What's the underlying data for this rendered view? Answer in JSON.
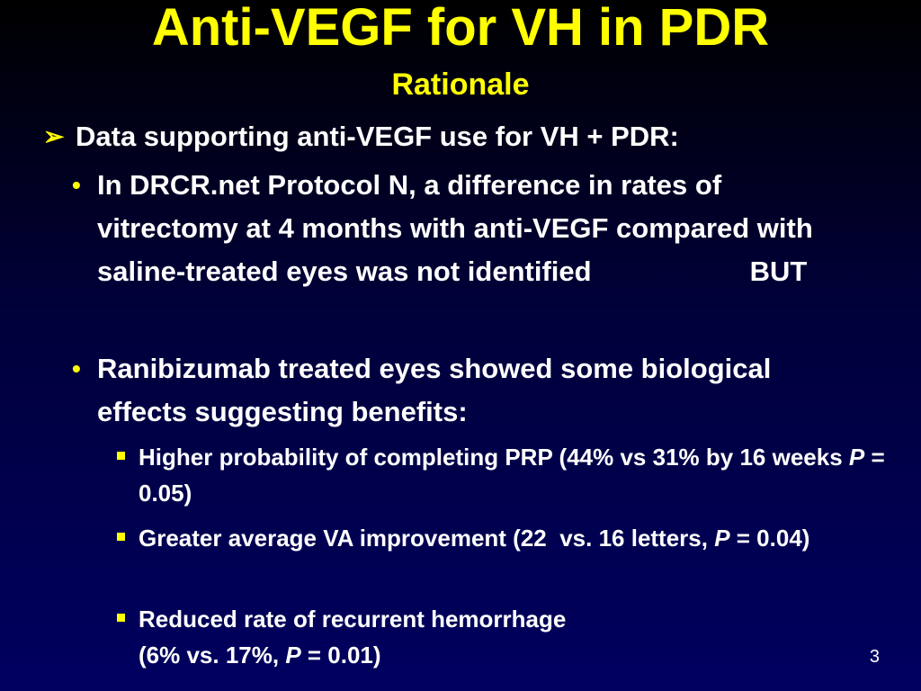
{
  "title": "Anti-VEGF for VH in PDR",
  "subtitle": "Rationale",
  "heading": "Data supporting anti-VEGF use for VH + PDR:",
  "bullets": [
    {
      "lead": "In DRCR.net Protocol N, a difference in rates of vitrectomy at 4 months with anti-VEGF compared with saline-treated eyes was not identified",
      "tail": "BUT"
    },
    {
      "text": "Ranibizumab treated eyes showed some biological effects suggesting benefits:"
    }
  ],
  "subbullets": [
    {
      "before": "Higher probability of completing PRP (44% vs 31% by 16 weeks ",
      "p": "P",
      "after": " = 0.05)"
    },
    {
      "before": "Greater average VA improvement (22  vs. 16 letters, ",
      "p": "P",
      "after": " = 0.04)"
    },
    {
      "line1": "Reduced rate of recurrent hemorrhage",
      "before": "(6% vs. 17%, ",
      "p": "P",
      "after": " = 0.01)"
    }
  ],
  "page_number": "3"
}
